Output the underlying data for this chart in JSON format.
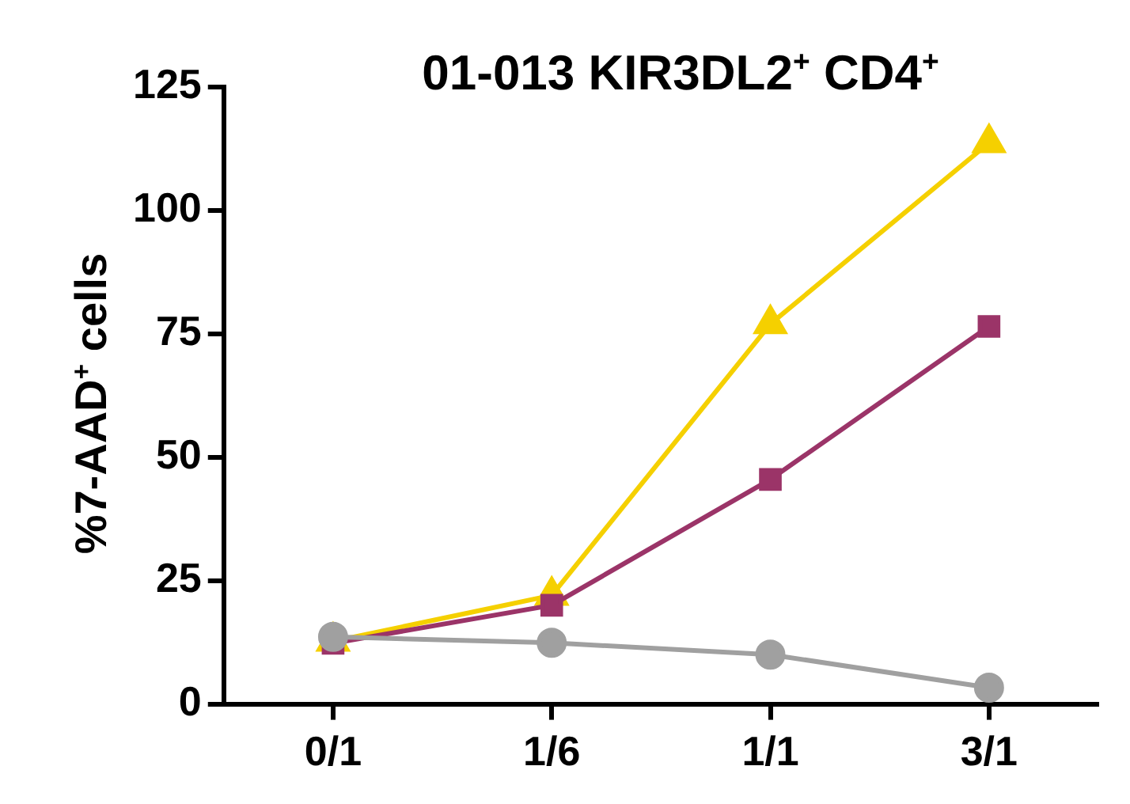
{
  "chart_data": {
    "type": "line",
    "title": "01-013 KIR3DL2$^{+}$ CD4$^{+}$",
    "ylabel": "%7-AAD$^{+}$ cells",
    "categories": [
      "0/1",
      "1/6",
      "1/1",
      "3/1"
    ],
    "ylim": [
      0,
      125
    ],
    "yticks": [
      0,
      25,
      50,
      75,
      100,
      125
    ],
    "grid": false,
    "legend": false,
    "series": [
      {
        "color": "#f5d000",
        "marker": "triangle",
        "values": [
          12.7,
          22,
          77,
          113.7
        ]
      },
      {
        "color": "#9b3468",
        "marker": "square",
        "values": [
          12.3,
          20,
          45.5,
          76.5
        ]
      },
      {
        "color": "#a0a0a0",
        "marker": "circle",
        "values": [
          13.6,
          12.4,
          10,
          3.3
        ]
      }
    ]
  }
}
